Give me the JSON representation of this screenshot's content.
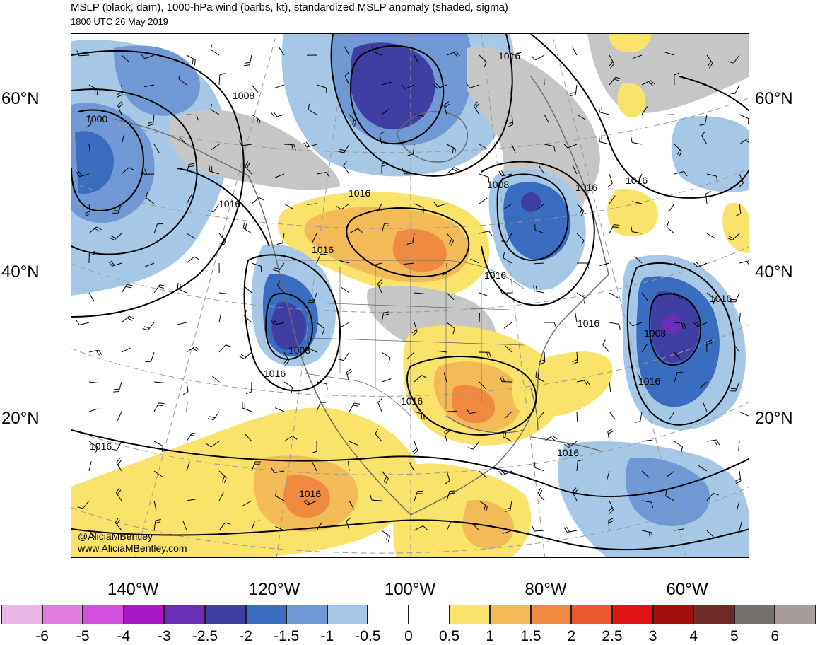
{
  "header": {
    "title": "MSLP (black, dam), 1000-hPa wind (barbs, kt), standardized MSLP anomaly (shaded, sigma)",
    "subtitle": "1800 UTC 26 May 2019"
  },
  "axes": {
    "lat_labels": [
      "60°N",
      "40°N",
      "20°N"
    ],
    "lon_labels": [
      "140°W",
      "120°W",
      "100°W",
      "80°W",
      "60°W"
    ]
  },
  "credits": {
    "handle": "@AliciaMBentley",
    "website": "www.AliciaMBentley.com"
  },
  "contour_labels": [
    "1000",
    "1008",
    "1008",
    "1008",
    "1008",
    "1016",
    "1016",
    "1016",
    "1016",
    "1016",
    "1016",
    "1016",
    "1016",
    "1016",
    "1016",
    "1016",
    "1016",
    "1016"
  ],
  "colorbar": {
    "ticks": [
      "-6",
      "-5",
      "-4",
      "-3",
      "-2.5",
      "-2",
      "-1.5",
      "-1",
      "-0.5",
      "0",
      "0.5",
      "1",
      "1.5",
      "2",
      "2.5",
      "3",
      "4",
      "5",
      "6"
    ],
    "colors": [
      "#e9b8e6",
      "#e07fe0",
      "#d24fdd",
      "#a816c8",
      "#6a2fb6",
      "#3e3ea3",
      "#3a6cc0",
      "#6f98d4",
      "#a6c8e6",
      "#ffffff",
      "#ffffff",
      "#f9e36a",
      "#f2bb57",
      "#f08a40",
      "#ea5a32",
      "#e21313",
      "#a10e0e",
      "#6e2a28",
      "#76706e",
      "#a89c9b"
    ]
  },
  "palette": {
    "land_neutral": "#c6c6c6",
    "coastline": "#6a6a6a"
  }
}
